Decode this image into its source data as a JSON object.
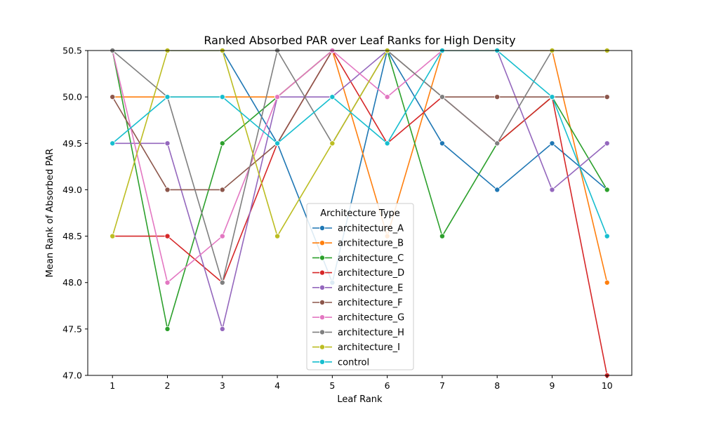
{
  "chart_data": {
    "type": "line",
    "title": "Ranked Absorbed PAR over Leaf Ranks for High Density",
    "xlabel": "Leaf Rank",
    "ylabel": "Mean Rank of Absorbed PAR",
    "x": [
      1,
      2,
      3,
      4,
      5,
      6,
      7,
      8,
      9,
      10
    ],
    "xlim": [
      0.55,
      10.45
    ],
    "ylim": [
      47.0,
      50.5
    ],
    "yticks": [
      "47.0",
      "47.5",
      "48.0",
      "48.5",
      "49.0",
      "49.5",
      "50.0",
      "50.5"
    ],
    "xticks": [
      "1",
      "2",
      "3",
      "4",
      "5",
      "6",
      "7",
      "8",
      "9",
      "10"
    ],
    "grid": false,
    "legend": {
      "title": "Architecture Type",
      "placement": "lower-center"
    },
    "series": [
      {
        "name": "architecture_A",
        "color": "#1f77b4",
        "values": [
          50.5,
          50.5,
          50.5,
          49.5,
          48.0,
          50.5,
          49.5,
          49.0,
          49.5,
          49.0
        ]
      },
      {
        "name": "architecture_B",
        "color": "#ff7f0e",
        "values": [
          50.0,
          50.0,
          50.0,
          50.0,
          50.5,
          48.5,
          50.5,
          50.5,
          50.5,
          48.0
        ]
      },
      {
        "name": "architecture_C",
        "color": "#2ca02c",
        "values": [
          50.5,
          47.5,
          49.5,
          50.0,
          50.5,
          50.5,
          48.5,
          49.5,
          50.0,
          49.0
        ]
      },
      {
        "name": "architecture_D",
        "color": "#d62728",
        "values": [
          48.5,
          48.5,
          48.0,
          49.5,
          50.5,
          49.5,
          50.0,
          49.5,
          50.0,
          47.0
        ]
      },
      {
        "name": "architecture_E",
        "color": "#9467bd",
        "values": [
          49.5,
          49.5,
          47.5,
          50.0,
          50.0,
          50.5,
          50.5,
          50.5,
          49.0,
          49.5
        ]
      },
      {
        "name": "architecture_F",
        "color": "#8c564b",
        "values": [
          50.0,
          49.0,
          49.0,
          49.5,
          50.5,
          50.5,
          50.0,
          50.0,
          50.0,
          50.0
        ]
      },
      {
        "name": "architecture_G",
        "color": "#e377c2",
        "values": [
          50.5,
          48.0,
          48.5,
          50.0,
          50.5,
          50.0,
          50.5,
          50.5,
          50.5,
          50.5
        ]
      },
      {
        "name": "architecture_H",
        "color": "#7f7f7f",
        "values": [
          50.5,
          50.0,
          48.0,
          50.5,
          49.5,
          50.5,
          50.0,
          49.5,
          50.5,
          50.5
        ]
      },
      {
        "name": "architecture_I",
        "color": "#bcbd22",
        "values": [
          48.5,
          50.5,
          50.5,
          48.5,
          49.5,
          50.5,
          50.5,
          50.5,
          50.5,
          50.5
        ]
      },
      {
        "name": "control",
        "color": "#17becf",
        "values": [
          49.5,
          50.0,
          50.0,
          49.5,
          50.0,
          49.5,
          50.5,
          50.5,
          50.0,
          48.5
        ]
      }
    ]
  }
}
